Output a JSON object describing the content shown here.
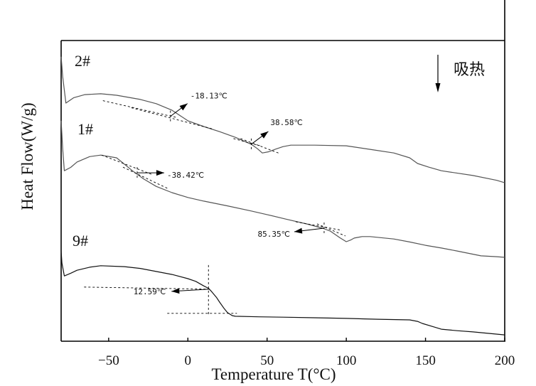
{
  "chart_data": {
    "type": "line",
    "title": "",
    "xlabel": "Temperature T(°C)",
    "ylabel": "Heat Flow(W/g)",
    "xlim": [
      -80,
      200
    ],
    "ylim": [
      0,
      100
    ],
    "y_units_note": "arbitrary (no y tick values shown)",
    "xticks": [
      -50,
      0,
      50,
      100,
      150,
      200
    ],
    "xtick_labels": [
      "-50",
      "0",
      "50",
      "100",
      "150",
      "200"
    ],
    "grid": false,
    "endotherm_label": "吸热",
    "endotherm_direction": "down",
    "series": [
      {
        "name": "2#",
        "color": "#555555",
        "points": [
          [
            -80,
            94.6
          ],
          [
            -79,
            88
          ],
          [
            -77,
            79.2
          ],
          [
            -72,
            81.0
          ],
          [
            -65,
            82.0
          ],
          [
            -55,
            82.3
          ],
          [
            -45,
            81.8
          ],
          [
            -30,
            80.4
          ],
          [
            -20,
            79.0
          ],
          [
            -10,
            76.8
          ],
          [
            0,
            73.3
          ],
          [
            10,
            71.4
          ],
          [
            20,
            69.7
          ],
          [
            30,
            67.8
          ],
          [
            40,
            65.5
          ],
          [
            44,
            64.0
          ],
          [
            47,
            62.6
          ],
          [
            51,
            63.0
          ],
          [
            55,
            63.8
          ],
          [
            60,
            64.7
          ],
          [
            65,
            65.2
          ],
          [
            80,
            65.2
          ],
          [
            100,
            65.0
          ],
          [
            115,
            63.8
          ],
          [
            130,
            62.6
          ],
          [
            140,
            61.0
          ],
          [
            145,
            59.1
          ],
          [
            152,
            57.9
          ],
          [
            160,
            56.7
          ],
          [
            180,
            55.1
          ],
          [
            195,
            53.5
          ],
          [
            200,
            52.7
          ]
        ]
      },
      {
        "name": "1#",
        "color": "#555555",
        "points": [
          [
            -80,
            73.3
          ],
          [
            -79,
            64
          ],
          [
            -78,
            56.7
          ],
          [
            -74,
            57.8
          ],
          [
            -70,
            59.6
          ],
          [
            -62,
            61.4
          ],
          [
            -55,
            61.9
          ],
          [
            -45,
            61.0
          ],
          [
            -35,
            56.7
          ],
          [
            -28,
            54.0
          ],
          [
            -20,
            51.5
          ],
          [
            -10,
            49.4
          ],
          [
            0,
            47.8
          ],
          [
            10,
            46.6
          ],
          [
            25,
            45.0
          ],
          [
            40,
            43.3
          ],
          [
            50,
            42.1
          ],
          [
            62,
            40.6
          ],
          [
            75,
            39.0
          ],
          [
            85,
            37.6
          ],
          [
            90,
            36.6
          ],
          [
            96,
            34.4
          ],
          [
            100,
            33.1
          ],
          [
            103,
            33.7
          ],
          [
            105,
            34.3
          ],
          [
            110,
            34.8
          ],
          [
            115,
            34.8
          ],
          [
            130,
            34.0
          ],
          [
            140,
            33.0
          ],
          [
            150,
            31.9
          ],
          [
            160,
            31.0
          ],
          [
            170,
            30.0
          ],
          [
            185,
            28.4
          ],
          [
            195,
            28.1
          ],
          [
            200,
            27.9
          ]
        ]
      },
      {
        "name": "9#",
        "color": "#111111",
        "points": [
          [
            -80,
            30
          ],
          [
            -79.5,
            26.0
          ],
          [
            -78,
            21.7
          ],
          [
            -74,
            22.6
          ],
          [
            -70,
            23.6
          ],
          [
            -62,
            24.6
          ],
          [
            -55,
            25.1
          ],
          [
            -40,
            24.8
          ],
          [
            -30,
            24.2
          ],
          [
            -20,
            23.2
          ],
          [
            -10,
            22.2
          ],
          [
            0,
            20.8
          ],
          [
            5,
            19.9
          ],
          [
            10,
            18.4
          ],
          [
            13,
            17.6
          ],
          [
            15,
            16.5
          ],
          [
            18,
            14.6
          ],
          [
            20,
            13.0
          ],
          [
            23,
            10.8
          ],
          [
            25,
            9.5
          ],
          [
            28,
            8.5
          ],
          [
            30,
            8.3
          ],
          [
            45,
            8.1
          ],
          [
            60,
            8.0
          ],
          [
            80,
            7.8
          ],
          [
            100,
            7.6
          ],
          [
            120,
            7.3
          ],
          [
            140,
            7.1
          ],
          [
            145,
            6.6
          ],
          [
            148,
            5.9
          ],
          [
            155,
            4.8
          ],
          [
            160,
            4.0
          ],
          [
            170,
            3.5
          ],
          [
            180,
            3.1
          ],
          [
            190,
            2.6
          ],
          [
            200,
            2.1
          ]
        ]
      }
    ],
    "annotations": [
      {
        "series": "2#",
        "text": "-18.13℃",
        "onset_T": -11,
        "onset_y": 74.8
      },
      {
        "series": "2#",
        "text": "38.58℃",
        "onset_T": 40,
        "onset_y": 65.5
      },
      {
        "series": "1#",
        "text": "-38.42℃",
        "onset_T": -32,
        "onset_y": 56.0
      },
      {
        "series": "1#",
        "text": "85.35℃",
        "onset_T": 86,
        "onset_y": 37.6
      },
      {
        "series": "9#",
        "text": "12.59℃",
        "onset_T": 13,
        "onset_y": 17.3
      }
    ],
    "series_labels": [
      {
        "text": "2#"
      },
      {
        "text": "1#"
      },
      {
        "text": "9#"
      }
    ]
  }
}
